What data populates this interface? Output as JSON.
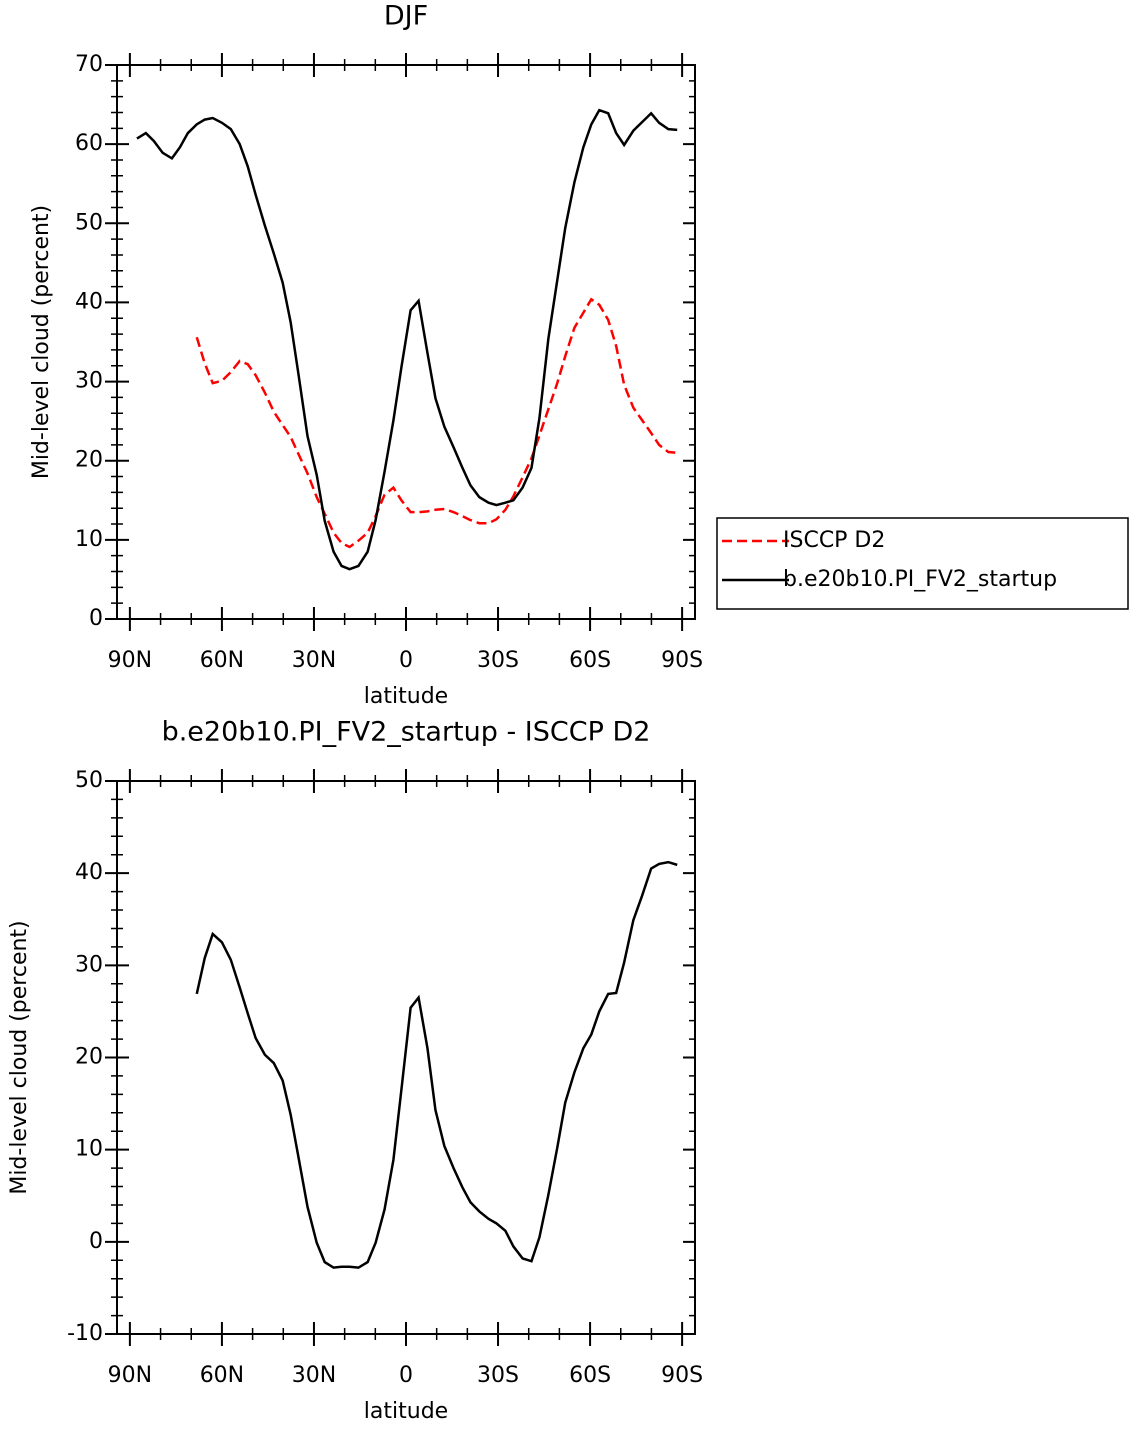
{
  "chart_data": [
    {
      "type": "line",
      "title": "DJF",
      "xlabel": "latitude",
      "ylabel": "Mid-level cloud (percent)",
      "x": [
        87.7,
        84.8,
        82.2,
        79.3,
        76.3,
        73.7,
        71.1,
        68.2,
        65.6,
        63,
        60,
        57.1,
        54.2,
        51.6,
        49,
        46,
        43.1,
        40.2,
        37.6,
        35,
        32.1,
        29.1,
        26.5,
        23.6,
        21,
        18.4,
        15.5,
        12.5,
        9.9,
        7,
        4.1,
        1.5,
        -1.5,
        -4.1,
        -7,
        -9.6,
        -12.5,
        -15.5,
        -18.4,
        -21,
        -23.9,
        -26.9,
        -29.5,
        -32.4,
        -35,
        -38,
        -40.9,
        -43.5,
        -46.4,
        -49.3,
        -51.9,
        -54.9,
        -57.8,
        -60.4,
        -63,
        -65.9,
        -68.5,
        -71.1,
        -74.1,
        -77,
        -79.9,
        -82.5,
        -85.5,
        -88.4
      ],
      "series": [
        {
          "name": "ISCCP D2",
          "color": "#ff0000",
          "dash": true,
          "values": [
            null,
            null,
            null,
            null,
            null,
            null,
            null,
            35.6,
            32.3,
            29.8,
            30.1,
            31.2,
            32.6,
            32.2,
            30.8,
            28.6,
            26.2,
            24.5,
            23,
            20.8,
            18.4,
            15.4,
            13.3,
            10.9,
            9.6,
            9.1,
            9.9,
            10.9,
            13,
            15.7,
            16.6,
            15,
            13.5,
            13.5,
            13.6,
            13.8,
            13.9,
            13.5,
            13,
            12.5,
            12.1,
            12.1,
            12.6,
            13.8,
            15.5,
            17.9,
            20.3,
            23.2,
            26.5,
            29.8,
            33.2,
            36.8,
            38.7,
            40.4,
            39.7,
            37.8,
            34.5,
            29.6,
            26.7,
            25.1,
            23.5,
            22,
            21.1,
            21
          ]
        },
        {
          "name": "b.e20b10.PI_FV2_startup",
          "color": "#000000",
          "dash": false,
          "values": [
            60.7,
            61.4,
            60.4,
            58.9,
            58.2,
            59.6,
            61.4,
            62.5,
            63.1,
            63.3,
            62.7,
            61.9,
            60,
            57.2,
            53.6,
            49.7,
            46.2,
            42.5,
            37.5,
            30.8,
            23.1,
            18.2,
            12.4,
            8.5,
            6.7,
            6.3,
            6.7,
            8.5,
            12.5,
            18.6,
            25.1,
            31.8,
            39,
            40.2,
            33.6,
            27.9,
            24.3,
            21.7,
            19.1,
            16.9,
            15.4,
            14.7,
            14.4,
            14.7,
            15,
            16.6,
            19.1,
            25.4,
            35.4,
            42.8,
            49.4,
            55.2,
            59.6,
            62.5,
            64.3,
            63.9,
            61.4,
            59.9,
            61.7,
            62.8,
            63.9,
            62.7,
            61.9,
            61.8
          ]
        }
      ],
      "xlim": [
        94.2,
        -94.2
      ],
      "xticks": [
        {
          "value": 90,
          "label": "90N"
        },
        {
          "value": 60,
          "label": "60N"
        },
        {
          "value": 30,
          "label": "30N"
        },
        0,
        {
          "value": -30,
          "label": "30S"
        },
        {
          "value": -60,
          "label": "60S"
        },
        {
          "value": -90,
          "label": "90S"
        }
      ],
      "ylim": [
        0,
        70
      ],
      "yticks": [
        0,
        10,
        20,
        30,
        40,
        50,
        60,
        70
      ],
      "legend": "outside-right"
    },
    {
      "type": "line",
      "title": "b.e20b10.PI_FV2_startup - ISCCP D2",
      "xlabel": "latitude",
      "ylabel": "Mid-level cloud (percent)",
      "x": [
        68.2,
        65.6,
        63,
        60,
        57.1,
        54.2,
        51.6,
        49,
        46,
        43.1,
        40.2,
        37.6,
        35,
        32.1,
        29.1,
        26.5,
        23.6,
        21,
        18.4,
        15.5,
        12.5,
        9.9,
        7,
        4.1,
        1.5,
        -1.5,
        -4.1,
        -7,
        -9.6,
        -12.5,
        -15.5,
        -18.4,
        -21,
        -23.9,
        -26.9,
        -29.5,
        -32.4,
        -35,
        -38,
        -40.9,
        -43.5,
        -46.4,
        -49.3,
        -51.9,
        -54.9,
        -57.8,
        -60.4,
        -63,
        -65.9,
        -68.5,
        -71.1,
        -74.1,
        -77,
        -79.9,
        -82.5,
        -85.5,
        -88.4
      ],
      "values": [
        26.9,
        30.8,
        33.4,
        32.5,
        30.6,
        27.6,
        24.8,
        22.1,
        20.3,
        19.4,
        17.5,
        13.8,
        9.1,
        3.8,
        -0.1,
        -2.2,
        -2.8,
        -2.7,
        -2.7,
        -2.8,
        -2.2,
        -0.1,
        3.5,
        8.9,
        16.5,
        25.4,
        26.5,
        21,
        14.3,
        10.4,
        8,
        5.9,
        4.3,
        3.3,
        2.5,
        2,
        1.2,
        -0.5,
        -1.8,
        -2.1,
        0.5,
        5.1,
        10.2,
        15.1,
        18.4,
        21,
        22.5,
        25,
        26.9,
        27,
        30.3,
        34.9,
        37.6,
        40.5,
        41,
        41.2,
        40.9
      ],
      "color": "#000000",
      "xlim": [
        94.2,
        -94.2
      ],
      "xticks": [
        {
          "value": 90,
          "label": "90N"
        },
        {
          "value": 60,
          "label": "60N"
        },
        {
          "value": 30,
          "label": "30N"
        },
        0,
        {
          "value": -30,
          "label": "30S"
        },
        {
          "value": -60,
          "label": "60S"
        },
        {
          "value": -90,
          "label": "90S"
        }
      ],
      "ylim": [
        -10,
        50
      ],
      "yticks": [
        -10,
        0,
        10,
        20,
        30,
        40,
        50
      ]
    }
  ]
}
